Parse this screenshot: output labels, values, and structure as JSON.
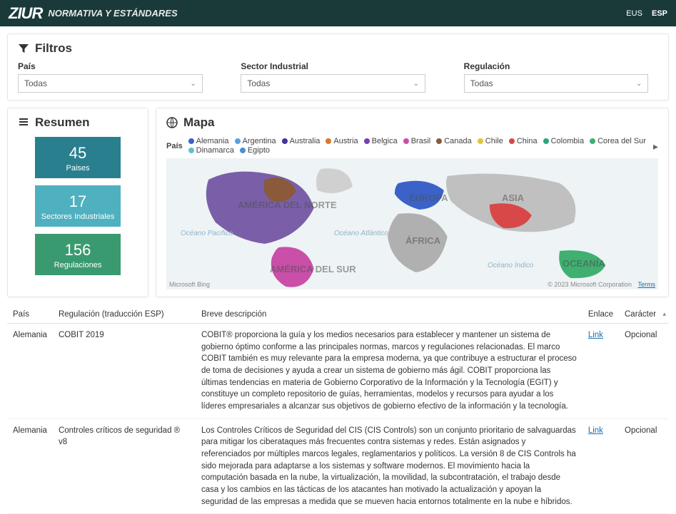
{
  "header": {
    "logo": "ZIUR",
    "subtitle": "NORMATIVA Y ESTÁNDARES",
    "lang_eus": "EUS",
    "lang_esp": "ESP"
  },
  "filters": {
    "title": "Filtros",
    "country": {
      "label": "País",
      "value": "Todas"
    },
    "sector": {
      "label": "Sector Industrial",
      "value": "Todas"
    },
    "regulation": {
      "label": "Regulación",
      "value": "Todas"
    }
  },
  "summary": {
    "title": "Resumen",
    "stats": [
      {
        "value": "45",
        "label": "Paises",
        "bg": "#2a7f8e"
      },
      {
        "value": "17",
        "label": "Sectores Industriales",
        "bg": "#4fb0bf"
      },
      {
        "value": "156",
        "label": "Regulaciones",
        "bg": "#3a9a6f"
      }
    ]
  },
  "map": {
    "title": "Mapa",
    "legend_header": "País",
    "legend": [
      {
        "label": "Alemania",
        "color": "#3a62c9"
      },
      {
        "label": "Argentina",
        "color": "#5aa0e0"
      },
      {
        "label": "Australia",
        "color": "#4a2f9e"
      },
      {
        "label": "Austria",
        "color": "#e0762a"
      },
      {
        "label": "Belgica",
        "color": "#7a3fb0"
      },
      {
        "label": "Brasil",
        "color": "#c94fa8"
      },
      {
        "label": "Canada",
        "color": "#8a5a3a"
      },
      {
        "label": "Chile",
        "color": "#e6c23a"
      },
      {
        "label": "China",
        "color": "#d84848"
      },
      {
        "label": "Colombia",
        "color": "#2fa57a"
      },
      {
        "label": "Corea del Sur",
        "color": "#3fb06f"
      },
      {
        "label": "Dinamarca",
        "color": "#5fc0d0"
      },
      {
        "label": "Egipto",
        "color": "#4a8fd0"
      }
    ],
    "continent_labels": {
      "na": "AMÉRICA DEL NORTE",
      "sa": "AMÉRICA DEL SUR",
      "eu": "EUROPA",
      "af": "ÁFRICA",
      "as": "ASIA",
      "oc": "OCEANÍA"
    },
    "ocean_labels": {
      "pacifico": "Océano Pacífico",
      "atlantico": "Océano Atlántico",
      "indico": "Océano Índico"
    },
    "attribution": "Microsoft Bing",
    "copyright": "© 2023 Microsoft Corporation",
    "terms": "Terms"
  },
  "table": {
    "headers": {
      "pais": "País",
      "regulacion": "Regulación (traducción ESP)",
      "descripcion": "Breve descripción",
      "enlace": "Enlace",
      "caracter": "Carácter"
    },
    "rows": [
      {
        "pais": "Alemania",
        "regulacion": "COBIT 2019",
        "descripcion": "COBIT® proporciona la guía y los medios necesarios para establecer y mantener un sistema de gobierno óptimo conforme a las principales normas, marcos y regulaciones relacionadas. El marco COBIT también es muy relevante para la empresa moderna, ya que contribuye a estructurar el proceso de toma de decisiones y ayuda a crear un sistema de gobierno más ágil. COBIT proporciona las últimas tendencias en materia de Gobierno Corporativo de la Información y la Tecnología (EGIT) y constituye un completo repositorio de guías, herramientas, modelos y recursos para ayudar a los líderes empresariales a alcanzar sus objetivos de gobierno efectivo de la información y la tecnología.",
        "enlace": "Link",
        "caracter": "Opcional"
      },
      {
        "pais": "Alemania",
        "regulacion": "Controles críticos de seguridad ® v8",
        "descripcion": "Los Controles Críticos de Seguridad del CIS (CIS Controls) son un conjunto prioritario de salvaguardas para mitigar los ciberataques más frecuentes contra sistemas y redes. Están asignados y referenciados por múltiples marcos legales, reglamentarios y políticos. La versión 8 de CIS Controls ha sido mejorada para adaptarse a los sistemas y software modernos. El movimiento hacia la computación basada en la nube, la virtualización, la movilidad, la subcontratación, el trabajo desde casa y los cambios en las tácticas de los atacantes han motivado la actualización y apoyan la seguridad de las empresas a medida que se mueven hacia entornos totalmente en la nube e híbridos.",
        "enlace": "Link",
        "caracter": "Opcional"
      }
    ]
  },
  "colors": {
    "header_bg": "#1a3a3a",
    "map_bg": "#eef3f5",
    "map_countries": {
      "na": "#7a5fa8",
      "sa": "#c94fa8",
      "eu": "#3a62c9",
      "af": "#b0b0b0",
      "as": "#d84848",
      "oc": "#3fb06f",
      "greenland": "#d0d0d0",
      "russia": "#c0c0c0"
    }
  }
}
